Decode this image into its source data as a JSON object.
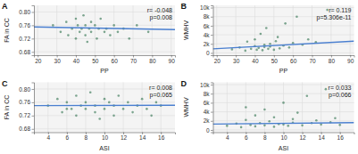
{
  "chart_data": [
    {
      "type": "scatter",
      "panel": "A",
      "x_label": "PP",
      "y_label": "FA in CC",
      "annotations": [
        "r= -0.048",
        "p=0.008"
      ],
      "color": "#3b7a57",
      "grid": true,
      "xlim": [
        18,
        92
      ],
      "xticks": [
        20,
        30,
        40,
        50,
        60,
        70,
        80,
        90
      ],
      "ylim": [
        0.67,
        0.82
      ],
      "yticks": [
        0.68,
        0.72,
        0.76,
        {
          "value": 0.8,
          "label": "0.80"
        }
      ],
      "x": [
        28,
        32,
        35,
        36,
        38,
        40,
        40,
        41,
        42,
        43,
        44,
        45,
        45,
        46,
        47,
        48,
        48,
        50,
        51,
        52,
        53,
        55,
        56,
        58,
        60,
        62,
        65,
        68,
        72,
        78
      ],
      "y": [
        0.76,
        0.74,
        0.77,
        0.73,
        0.75,
        0.78,
        0.72,
        0.76,
        0.74,
        0.75,
        0.79,
        0.73,
        0.76,
        0.71,
        0.75,
        0.77,
        0.74,
        0.76,
        0.72,
        0.75,
        0.78,
        0.74,
        0.75,
        0.73,
        0.76,
        0.74,
        0.75,
        0.72,
        0.76,
        0.74
      ],
      "trend_line": {
        "x": [
          18,
          92
        ],
        "y": [
          0.755,
          0.747
        ],
        "color": "#4a7fd0"
      }
    },
    {
      "type": "scatter",
      "panel": "B",
      "x_label": "PP",
      "y_label": "WMHV",
      "annotations": [
        "r= 0.119",
        "p=5.306e-11"
      ],
      "color": "#3b7a57",
      "grid": true,
      "xlim": [
        18,
        92
      ],
      "xticks": [
        20,
        30,
        40,
        50,
        60,
        70,
        80,
        90
      ],
      "ylim": [
        -500,
        10500
      ],
      "yticks": [
        0,
        {
          "value": 2000,
          "label": "2k"
        },
        {
          "value": 4000,
          "label": "4k"
        },
        {
          "value": 6000,
          "label": "6k"
        },
        {
          "value": 8000,
          "label": "8k"
        },
        {
          "value": 10000,
          "label": "10k"
        }
      ],
      "x": [
        28,
        32,
        35,
        36,
        38,
        40,
        40,
        41,
        42,
        43,
        44,
        45,
        45,
        46,
        47,
        48,
        48,
        50,
        51,
        52,
        53,
        55,
        56,
        58,
        60,
        62,
        65,
        68,
        72,
        78
      ],
      "y": [
        800,
        1200,
        500,
        2500,
        900,
        1500,
        3000,
        700,
        1100,
        4200,
        600,
        1800,
        1300,
        5500,
        900,
        2000,
        1400,
        700,
        2600,
        3500,
        1000,
        1600,
        6500,
        1200,
        2200,
        8000,
        1800,
        3000,
        2400,
        9500
      ],
      "trend_line": {
        "x": [
          18,
          92
        ],
        "y": [
          900,
          2600
        ],
        "color": "#4a7fd0"
      }
    },
    {
      "type": "scatter",
      "panel": "C",
      "x_label": "ASI",
      "y_label": "FA in CC",
      "annotations": [
        "r= 0.008",
        "p=0.065"
      ],
      "color": "#3b7a57",
      "grid": true,
      "xlim": [
        2.5,
        17.5
      ],
      "xticks": [
        4,
        6,
        8,
        10,
        12,
        14,
        16
      ],
      "ylim": [
        0.67,
        0.82
      ],
      "yticks": [
        0.68,
        0.72,
        0.76,
        {
          "value": 0.8,
          "label": "0.80"
        }
      ],
      "x": [
        4,
        5,
        5.5,
        6,
        6.5,
        7,
        7,
        7.5,
        8,
        8,
        8.5,
        9,
        9,
        9.5,
        10,
        10,
        10.5,
        11,
        11,
        11.5,
        12,
        12.5,
        13,
        13.5,
        14,
        14.5,
        15,
        15.5,
        16,
        6
      ],
      "y": [
        0.75,
        0.77,
        0.73,
        0.76,
        0.74,
        0.78,
        0.72,
        0.75,
        0.76,
        0.74,
        0.79,
        0.73,
        0.75,
        0.71,
        0.77,
        0.74,
        0.76,
        0.75,
        0.72,
        0.78,
        0.74,
        0.76,
        0.73,
        0.75,
        0.77,
        0.74,
        0.72,
        0.76,
        0.75,
        0.74
      ],
      "trend_line": {
        "x": [
          2.5,
          17.5
        ],
        "y": [
          0.75,
          0.751
        ],
        "color": "#4a7fd0"
      }
    },
    {
      "type": "scatter",
      "panel": "D",
      "x_label": "ASI",
      "y_label": "WMHV",
      "annotations": [
        "r= 0.033",
        "p=0.066"
      ],
      "color": "#3b7a57",
      "grid": true,
      "xlim": [
        2.5,
        17.5
      ],
      "xticks": [
        4,
        6,
        8,
        10,
        12,
        14,
        16
      ],
      "ylim": [
        -500,
        10500
      ],
      "yticks": [
        0,
        {
          "value": 2000,
          "label": "2k"
        },
        {
          "value": 4000,
          "label": "4k"
        },
        {
          "value": 6000,
          "label": "6k"
        },
        {
          "value": 8000,
          "label": "8k"
        },
        {
          "value": 10000,
          "label": "10k"
        }
      ],
      "x": [
        4,
        5,
        5.5,
        6,
        6.5,
        7,
        7,
        7.5,
        8,
        8,
        8.5,
        9,
        9,
        9.5,
        10,
        10,
        10.5,
        11,
        11,
        11.5,
        12,
        12.5,
        13,
        13.5,
        14,
        14.5,
        15,
        15.5,
        16,
        6
      ],
      "y": [
        900,
        1400,
        600,
        2200,
        1100,
        3200,
        800,
        1500,
        4500,
        1000,
        1900,
        700,
        2800,
        1300,
        6000,
        1200,
        900,
        2400,
        1600,
        3800,
        1000,
        7500,
        1500,
        2100,
        1200,
        9000,
        1700,
        2600,
        1100,
        5000
      ],
      "trend_line": {
        "x": [
          2.5,
          17.5
        ],
        "y": [
          1300,
          1600
        ],
        "color": "#4a7fd0"
      }
    }
  ]
}
